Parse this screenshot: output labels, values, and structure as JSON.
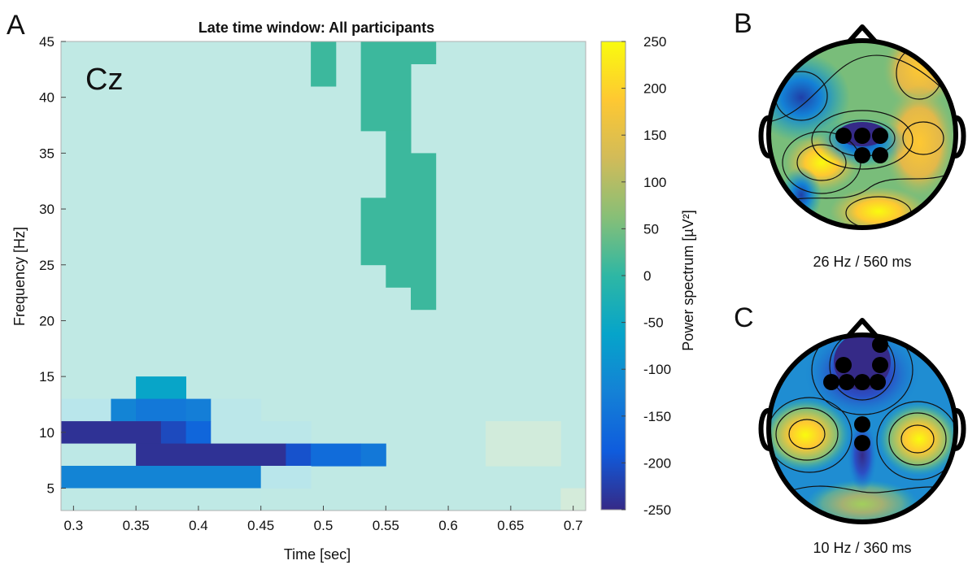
{
  "panels": {
    "a_letter": "A",
    "b_letter": "B",
    "c_letter": "C"
  },
  "heatmap": {
    "title": "Late time window: All participants",
    "inset_label": "Cz",
    "xlabel": "Time [sec]",
    "ylabel": "Frequency [Hz]",
    "xticks": [
      "0.3",
      "0.35",
      "0.4",
      "0.45",
      "0.5",
      "0.55",
      "0.6",
      "0.65",
      "0.7"
    ],
    "yticks": [
      "5",
      "10",
      "15",
      "20",
      "25",
      "30",
      "35",
      "40",
      "45"
    ],
    "colorbar_label": "Power spectrum [µV²]",
    "colorbar_ticks": [
      "250",
      "200",
      "150",
      "100",
      "50",
      "0",
      "-50",
      "-100",
      "-150",
      "-200",
      "-250"
    ]
  },
  "topo_b": {
    "caption": "26 Hz / 560 ms"
  },
  "topo_c": {
    "caption": "10 Hz / 360 ms"
  },
  "chart_data": [
    {
      "type": "heatmap",
      "title": "Late time window: All participants",
      "annotation": "Cz",
      "xlabel": "Time [sec]",
      "ylabel": "Frequency [Hz]",
      "xlim": [
        0.29,
        0.71
      ],
      "ylim": [
        3,
        45
      ],
      "zlim": [
        -250,
        250
      ],
      "colorbar_label": "Power spectrum [µV²]",
      "x_step": 0.02,
      "y_step": 2,
      "background_value": 0,
      "cells": [
        {
          "x": [
            0.49,
            0.51
          ],
          "y": [
            41,
            45
          ],
          "value": 10
        },
        {
          "x": [
            0.53,
            0.57
          ],
          "y": [
            37,
            45
          ],
          "value": 10
        },
        {
          "x": [
            0.57,
            0.59
          ],
          "y": [
            43,
            45
          ],
          "value": 10
        },
        {
          "x": [
            0.55,
            0.57
          ],
          "y": [
            25,
            37
          ],
          "value": 10
        },
        {
          "x": [
            0.57,
            0.59
          ],
          "y": [
            21,
            35
          ],
          "value": 10
        },
        {
          "x": [
            0.53,
            0.55
          ],
          "y": [
            25,
            31
          ],
          "value": 10
        },
        {
          "x": [
            0.55,
            0.57
          ],
          "y": [
            23,
            25
          ],
          "value": 10
        },
        {
          "x": [
            0.35,
            0.39
          ],
          "y": [
            13,
            15
          ],
          "value": -60
        },
        {
          "x": [
            0.29,
            0.33
          ],
          "y": [
            11,
            13
          ],
          "value": -40
        },
        {
          "x": [
            0.33,
            0.35
          ],
          "y": [
            11,
            13
          ],
          "value": -120
        },
        {
          "x": [
            0.35,
            0.39
          ],
          "y": [
            11,
            13
          ],
          "value": -140
        },
        {
          "x": [
            0.39,
            0.41
          ],
          "y": [
            11,
            13
          ],
          "value": -130
        },
        {
          "x": [
            0.41,
            0.45
          ],
          "y": [
            11,
            13
          ],
          "value": -30
        },
        {
          "x": [
            0.29,
            0.37
          ],
          "y": [
            9,
            11
          ],
          "value": -240
        },
        {
          "x": [
            0.37,
            0.39
          ],
          "y": [
            9,
            11
          ],
          "value": -210
        },
        {
          "x": [
            0.39,
            0.41
          ],
          "y": [
            9,
            11
          ],
          "value": -170
        },
        {
          "x": [
            0.41,
            0.49
          ],
          "y": [
            9,
            11
          ],
          "value": -30
        },
        {
          "x": [
            0.29,
            0.35
          ],
          "y": [
            7,
            9
          ],
          "value": -15
        },
        {
          "x": [
            0.35,
            0.47
          ],
          "y": [
            7,
            9
          ],
          "value": -240
        },
        {
          "x": [
            0.47,
            0.49
          ],
          "y": [
            7,
            9
          ],
          "value": -200
        },
        {
          "x": [
            0.49,
            0.53
          ],
          "y": [
            7,
            9
          ],
          "value": -160
        },
        {
          "x": [
            0.53,
            0.55
          ],
          "y": [
            7,
            9
          ],
          "value": -140
        },
        {
          "x": [
            0.29,
            0.45
          ],
          "y": [
            5,
            7
          ],
          "value": -120
        },
        {
          "x": [
            0.45,
            0.49
          ],
          "y": [
            5,
            7
          ],
          "value": -40
        },
        {
          "x": [
            0.29,
            0.45
          ],
          "y": [
            3,
            5
          ],
          "value": -5
        },
        {
          "x": [
            0.63,
            0.69
          ],
          "y": [
            7,
            11
          ],
          "value": 40
        },
        {
          "x": [
            0.69,
            0.71
          ],
          "y": [
            3,
            5
          ],
          "value": 45
        }
      ]
    },
    {
      "type": "topomap",
      "caption": "26 Hz / 560 ms",
      "colorscale": "parula",
      "highlighted_electrodes": 5
    },
    {
      "type": "topomap",
      "caption": "10 Hz / 360 ms",
      "colorscale": "parula",
      "highlighted_electrodes": 8
    }
  ]
}
